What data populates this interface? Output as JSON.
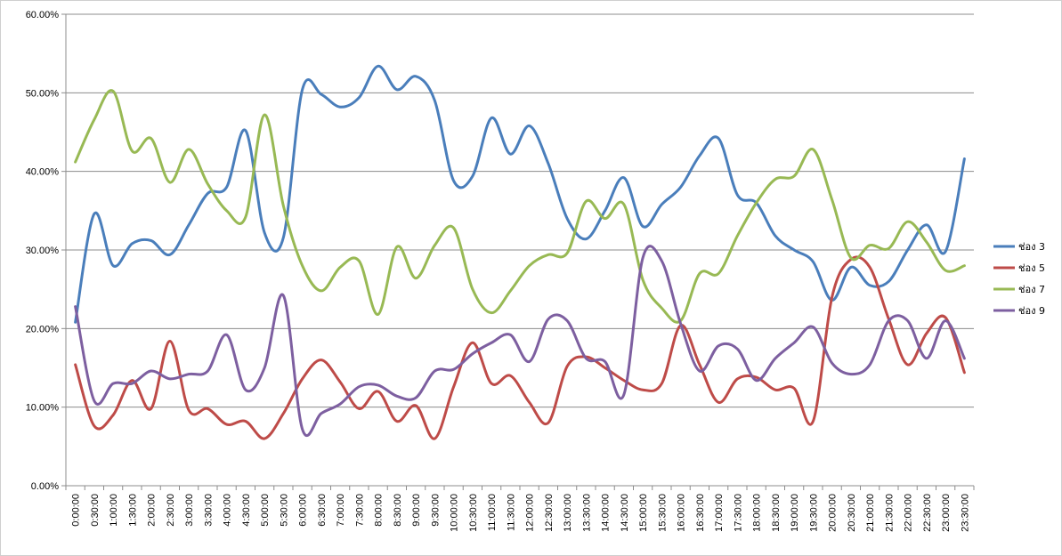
{
  "chart_data": {
    "type": "line",
    "title": "",
    "xlabel": "",
    "ylabel": "",
    "ylim": [
      0,
      60
    ],
    "y_ticks": [
      0,
      10,
      20,
      30,
      40,
      50,
      60
    ],
    "y_tick_labels": [
      "0.00%",
      "10.00%",
      "20.00%",
      "30.00%",
      "40.00%",
      "50.00%",
      "60.00%"
    ],
    "grid": true,
    "smooth": true,
    "legend_position": "right",
    "x": [
      "0:00:00",
      "0:30:00",
      "1:00:00",
      "1:30:00",
      "2:00:00",
      "2:30:00",
      "3:00:00",
      "3:30:00",
      "4:00:00",
      "4:30:00",
      "5:00:00",
      "5:30:00",
      "6:00:00",
      "6:30:00",
      "7:00:00",
      "7:30:00",
      "8:00:00",
      "8:30:00",
      "9:00:00",
      "9:30:00",
      "10:00:00",
      "10:30:00",
      "11:00:00",
      "11:30:00",
      "12:00:00",
      "12:30:00",
      "13:00:00",
      "13:30:00",
      "14:00:00",
      "14:30:00",
      "15:00:00",
      "15:30:00",
      "16:00:00",
      "16:30:00",
      "17:00:00",
      "17:30:00",
      "18:00:00",
      "18:30:00",
      "19:00:00",
      "19:30:00",
      "20:00:00",
      "20:30:00",
      "21:00:00",
      "21:30:00",
      "22:00:00",
      "22:30:00",
      "23:00:00",
      "23:30:00"
    ],
    "series": [
      {
        "name": "ช่อง 3",
        "color": "#4a7ebb",
        "values": [
          20.8,
          34.6,
          28.0,
          30.8,
          31.2,
          29.4,
          33.2,
          37.2,
          38.0,
          45.2,
          32.2,
          31.6,
          50.4,
          49.8,
          48.2,
          49.4,
          53.4,
          50.4,
          52.1,
          49.0,
          38.8,
          39.4,
          46.8,
          42.2,
          45.8,
          41.0,
          34.0,
          31.4,
          35.0,
          39.2,
          33.0,
          35.8,
          38.0,
          42.0,
          44.2,
          37.0,
          36.0,
          31.8,
          30.0,
          28.5,
          23.6,
          27.8,
          25.5,
          26.0,
          30.0,
          33.2,
          29.8,
          41.6
        ]
      },
      {
        "name": "ช่อง 5",
        "color": "#be4b48",
        "values": [
          15.4,
          7.6,
          9.0,
          13.4,
          9.8,
          18.4,
          9.6,
          9.8,
          7.8,
          8.2,
          6.0,
          9.2,
          13.6,
          16.0,
          13.2,
          9.8,
          12.0,
          8.2,
          10.2,
          6.0,
          12.6,
          18.2,
          13.0,
          14.0,
          10.6,
          8.0,
          15.2,
          16.4,
          15.0,
          13.4,
          12.2,
          13.0,
          20.4,
          15.4,
          10.6,
          13.6,
          13.8,
          12.2,
          12.4,
          8.2,
          24.0,
          28.8,
          27.8,
          21.2,
          15.4,
          19.4,
          21.4,
          14.4
        ]
      },
      {
        "name": "ช่อง 7",
        "color": "#98b954",
        "values": [
          41.2,
          46.6,
          50.2,
          42.6,
          44.2,
          38.6,
          42.8,
          38.4,
          35.0,
          34.2,
          47.2,
          35.6,
          28.0,
          24.8,
          27.8,
          28.6,
          21.8,
          30.4,
          26.4,
          30.6,
          32.8,
          25.0,
          22.0,
          24.8,
          28.0,
          29.4,
          29.6,
          36.2,
          34.0,
          35.8,
          26.2,
          22.6,
          21.0,
          27.0,
          27.0,
          31.8,
          36.0,
          39.0,
          39.4,
          42.8,
          36.4,
          29.0,
          30.6,
          30.2,
          33.6,
          31.0,
          27.4,
          28.0
        ]
      },
      {
        "name": "ช่อง 9",
        "color": "#7d5fa0",
        "values": [
          22.8,
          10.8,
          13.0,
          13.0,
          14.6,
          13.6,
          14.2,
          14.6,
          19.2,
          12.2,
          15.0,
          24.2,
          7.2,
          9.2,
          10.4,
          12.6,
          12.8,
          11.4,
          11.2,
          14.6,
          14.8,
          16.8,
          18.2,
          19.2,
          15.8,
          21.2,
          21.0,
          16.2,
          15.8,
          11.6,
          29.0,
          28.6,
          20.6,
          14.6,
          17.8,
          17.4,
          13.4,
          16.2,
          18.2,
          20.2,
          15.6,
          14.2,
          15.4,
          21.0,
          21.0,
          16.2,
          21.0,
          16.2
        ]
      }
    ]
  }
}
